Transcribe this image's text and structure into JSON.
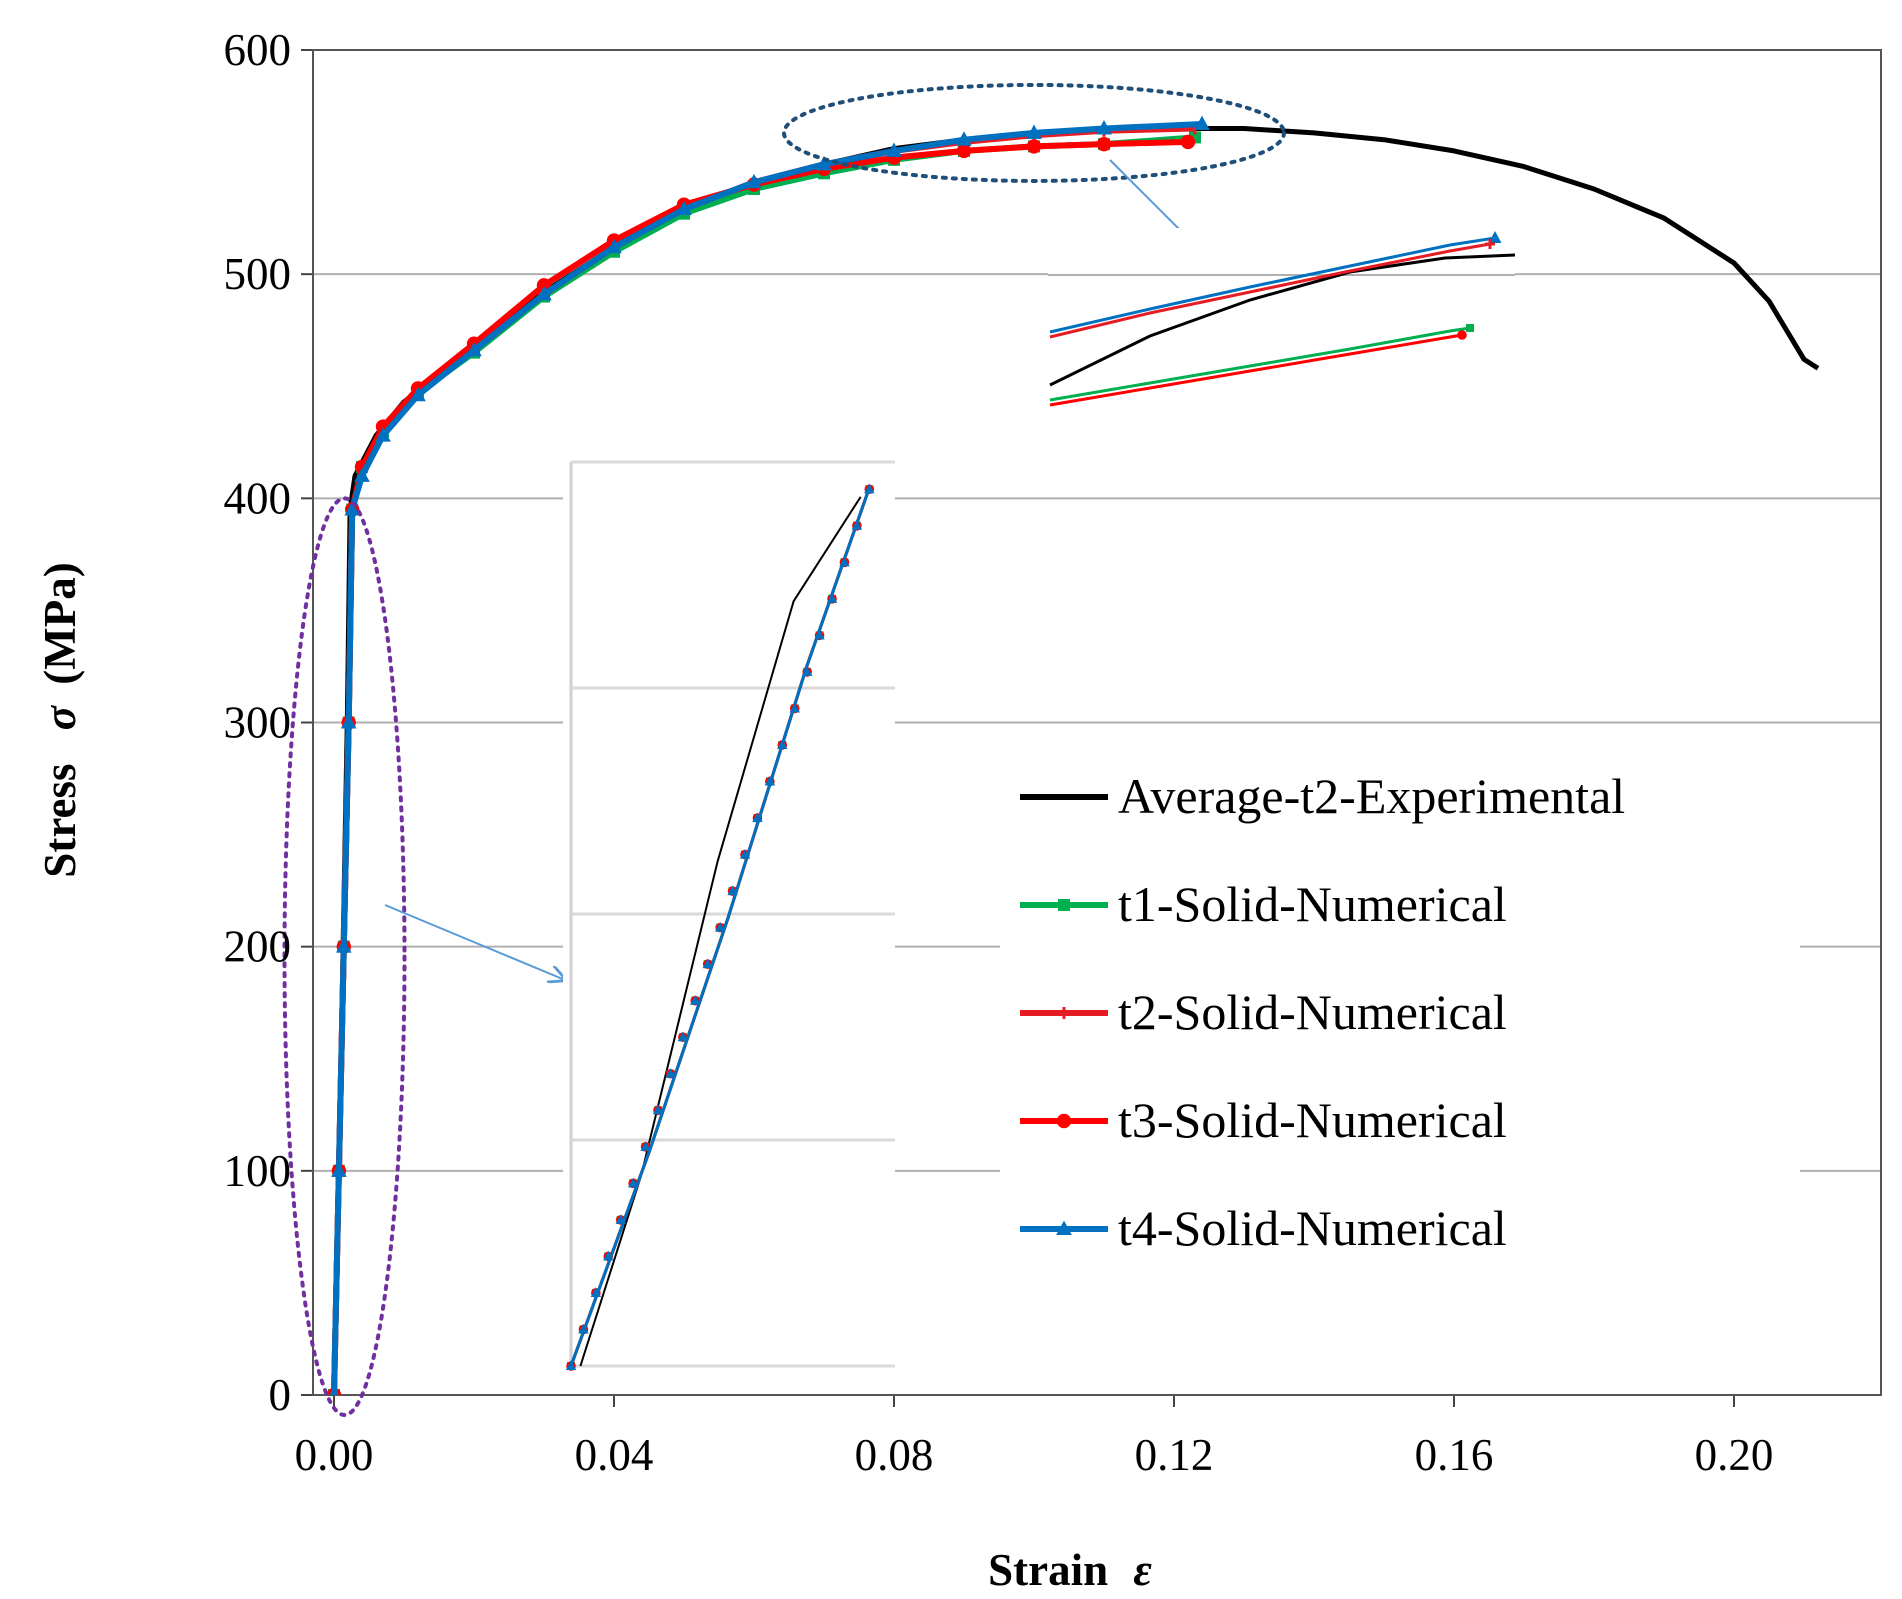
{
  "chart_data": {
    "type": "line",
    "title": "",
    "xlabel_text": "Strain",
    "xlabel_symbol": "ε",
    "ylabel_text": "Stress",
    "ylabel_symbol": "σ",
    "ylabel_unit": "(MPa)",
    "xlim": [
      -0.003,
      0.221
    ],
    "ylim": [
      0,
      600
    ],
    "x_ticks": [
      "0.00",
      "0.04",
      "0.08",
      "0.12",
      "0.16",
      "0.20"
    ],
    "x_tick_values": [
      0,
      0.04,
      0.08,
      0.12,
      0.16,
      0.2
    ],
    "y_ticks": [
      "0",
      "100",
      "200",
      "300",
      "400",
      "500",
      "600"
    ],
    "y_tick_values": [
      0,
      100,
      200,
      300,
      400,
      500,
      600
    ],
    "grid": "horizontal",
    "legend_position": "right",
    "series": [
      {
        "name": "Average-t2-Experimental",
        "color": "#000000",
        "marker": "none",
        "points": [
          [
            0,
            0
          ],
          [
            0.0007,
            100
          ],
          [
            0.0013,
            200
          ],
          [
            0.0019,
            300
          ],
          [
            0.0023,
            395
          ],
          [
            0.003,
            410
          ],
          [
            0.006,
            428
          ],
          [
            0.01,
            443
          ],
          [
            0.02,
            468
          ],
          [
            0.03,
            492
          ],
          [
            0.04,
            512
          ],
          [
            0.05,
            528
          ],
          [
            0.06,
            540
          ],
          [
            0.07,
            549
          ],
          [
            0.08,
            556
          ],
          [
            0.09,
            560
          ],
          [
            0.1,
            563
          ],
          [
            0.11,
            564
          ],
          [
            0.12,
            565
          ],
          [
            0.13,
            565
          ],
          [
            0.14,
            563
          ],
          [
            0.15,
            560
          ],
          [
            0.16,
            555
          ],
          [
            0.17,
            548
          ],
          [
            0.18,
            538
          ],
          [
            0.19,
            525
          ],
          [
            0.2,
            505
          ],
          [
            0.205,
            488
          ],
          [
            0.21,
            462
          ],
          [
            0.212,
            458
          ]
        ]
      },
      {
        "name": "t1-Solid-Numerical",
        "color": "#00b050",
        "marker": "square",
        "points": [
          [
            0,
            0
          ],
          [
            0.0007,
            100
          ],
          [
            0.0014,
            200
          ],
          [
            0.0021,
            300
          ],
          [
            0.0026,
            395
          ],
          [
            0.004,
            414
          ],
          [
            0.007,
            430
          ],
          [
            0.012,
            447
          ],
          [
            0.02,
            465
          ],
          [
            0.03,
            490
          ],
          [
            0.04,
            510
          ],
          [
            0.05,
            527
          ],
          [
            0.06,
            538
          ],
          [
            0.07,
            545
          ],
          [
            0.08,
            551
          ],
          [
            0.09,
            555
          ],
          [
            0.1,
            557
          ],
          [
            0.11,
            558
          ],
          [
            0.123,
            561
          ]
        ]
      },
      {
        "name": "t2-Solid-Numerical",
        "color": "#e51c23",
        "marker": "plus",
        "points": [
          [
            0,
            0
          ],
          [
            0.0007,
            100
          ],
          [
            0.0014,
            200
          ],
          [
            0.0021,
            300
          ],
          [
            0.0026,
            395
          ],
          [
            0.004,
            414
          ],
          [
            0.007,
            431
          ],
          [
            0.012,
            448
          ],
          [
            0.02,
            466
          ],
          [
            0.03,
            491
          ],
          [
            0.04,
            512
          ],
          [
            0.05,
            529
          ],
          [
            0.06,
            541
          ],
          [
            0.07,
            549
          ],
          [
            0.08,
            555
          ],
          [
            0.09,
            559
          ],
          [
            0.1,
            562
          ],
          [
            0.11,
            564
          ],
          [
            0.123,
            565
          ]
        ]
      },
      {
        "name": "t3-Solid-Numerical",
        "color": "#ff0000",
        "marker": "circle",
        "points": [
          [
            0,
            0
          ],
          [
            0.0007,
            100
          ],
          [
            0.0014,
            200
          ],
          [
            0.0021,
            300
          ],
          [
            0.0026,
            395
          ],
          [
            0.004,
            414
          ],
          [
            0.007,
            432
          ],
          [
            0.012,
            449
          ],
          [
            0.02,
            469
          ],
          [
            0.03,
            495
          ],
          [
            0.04,
            515
          ],
          [
            0.05,
            531
          ],
          [
            0.06,
            540
          ],
          [
            0.07,
            547
          ],
          [
            0.08,
            552
          ],
          [
            0.09,
            555
          ],
          [
            0.1,
            557
          ],
          [
            0.11,
            558
          ],
          [
            0.122,
            559
          ]
        ]
      },
      {
        "name": "t4-Solid-Numerical",
        "color": "#0070c0",
        "marker": "triangle",
        "points": [
          [
            0,
            0
          ],
          [
            0.0007,
            100
          ],
          [
            0.0014,
            200
          ],
          [
            0.0021,
            300
          ],
          [
            0.0026,
            395
          ],
          [
            0.004,
            410
          ],
          [
            0.007,
            428
          ],
          [
            0.012,
            446
          ],
          [
            0.02,
            466
          ],
          [
            0.03,
            491
          ],
          [
            0.04,
            512
          ],
          [
            0.05,
            529
          ],
          [
            0.06,
            541
          ],
          [
            0.07,
            549
          ],
          [
            0.08,
            555
          ],
          [
            0.09,
            560
          ],
          [
            0.1,
            563
          ],
          [
            0.11,
            565
          ],
          [
            0.124,
            567
          ]
        ]
      }
    ]
  }
}
